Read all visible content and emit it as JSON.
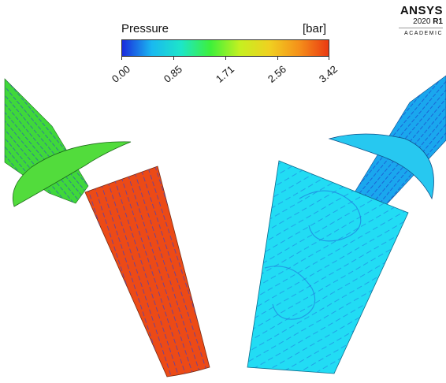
{
  "legend": {
    "title": "Pressure",
    "unit": "[bar]",
    "ticks": [
      "0.00",
      "0.85",
      "1.71",
      "2.56",
      "3.42"
    ],
    "colors": [
      "#1a2bdc",
      "#1ab8f0",
      "#1de6c8",
      "#3ef03a",
      "#c6f020",
      "#f0d020",
      "#f5901a",
      "#ea3a12"
    ]
  },
  "logo": {
    "name": "ANSYS",
    "version_year": "2020",
    "version_release": "R1",
    "edition": "ACADEMIC"
  },
  "fields": {
    "left_inlet_color": "#3fd83a",
    "left_chamber_color": "#ec4a16",
    "right_inlet_color": "#1aa7ee",
    "right_chamber_color": "#22dcf4",
    "vector_color": "#2b3fd6"
  }
}
